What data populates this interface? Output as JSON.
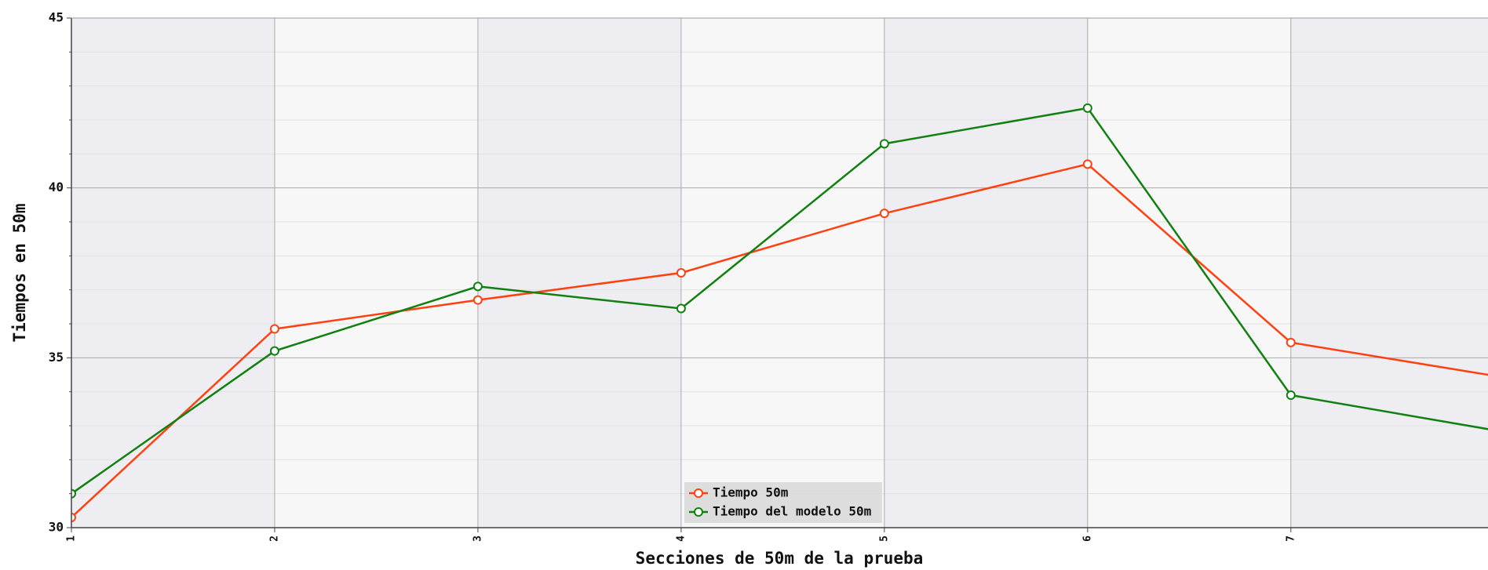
{
  "chart_data": {
    "type": "line",
    "xlabel": "Secciones de 50m de la prueba",
    "ylabel": "Tiempos en 50m",
    "x": [
      1,
      2,
      3,
      4,
      5,
      6,
      7,
      8
    ],
    "series": [
      {
        "name": "Tiempo 50m",
        "color": "#ff4010",
        "values": [
          30.3,
          35.85,
          36.7,
          37.5,
          39.25,
          40.7,
          35.45,
          34.47
        ]
      },
      {
        "name": "Tiempo del modelo 50m",
        "color": "#108010",
        "values": [
          31.0,
          35.2,
          37.1,
          36.45,
          41.3,
          42.35,
          33.9,
          32.87
        ]
      }
    ],
    "xlim": [
      1,
      7.97
    ],
    "xticks": [
      1,
      2,
      3,
      4,
      5,
      6,
      7
    ],
    "ylim": [
      30,
      45
    ],
    "yticks": [
      30,
      35,
      40,
      45
    ],
    "grid": true,
    "legend": "bottom"
  }
}
